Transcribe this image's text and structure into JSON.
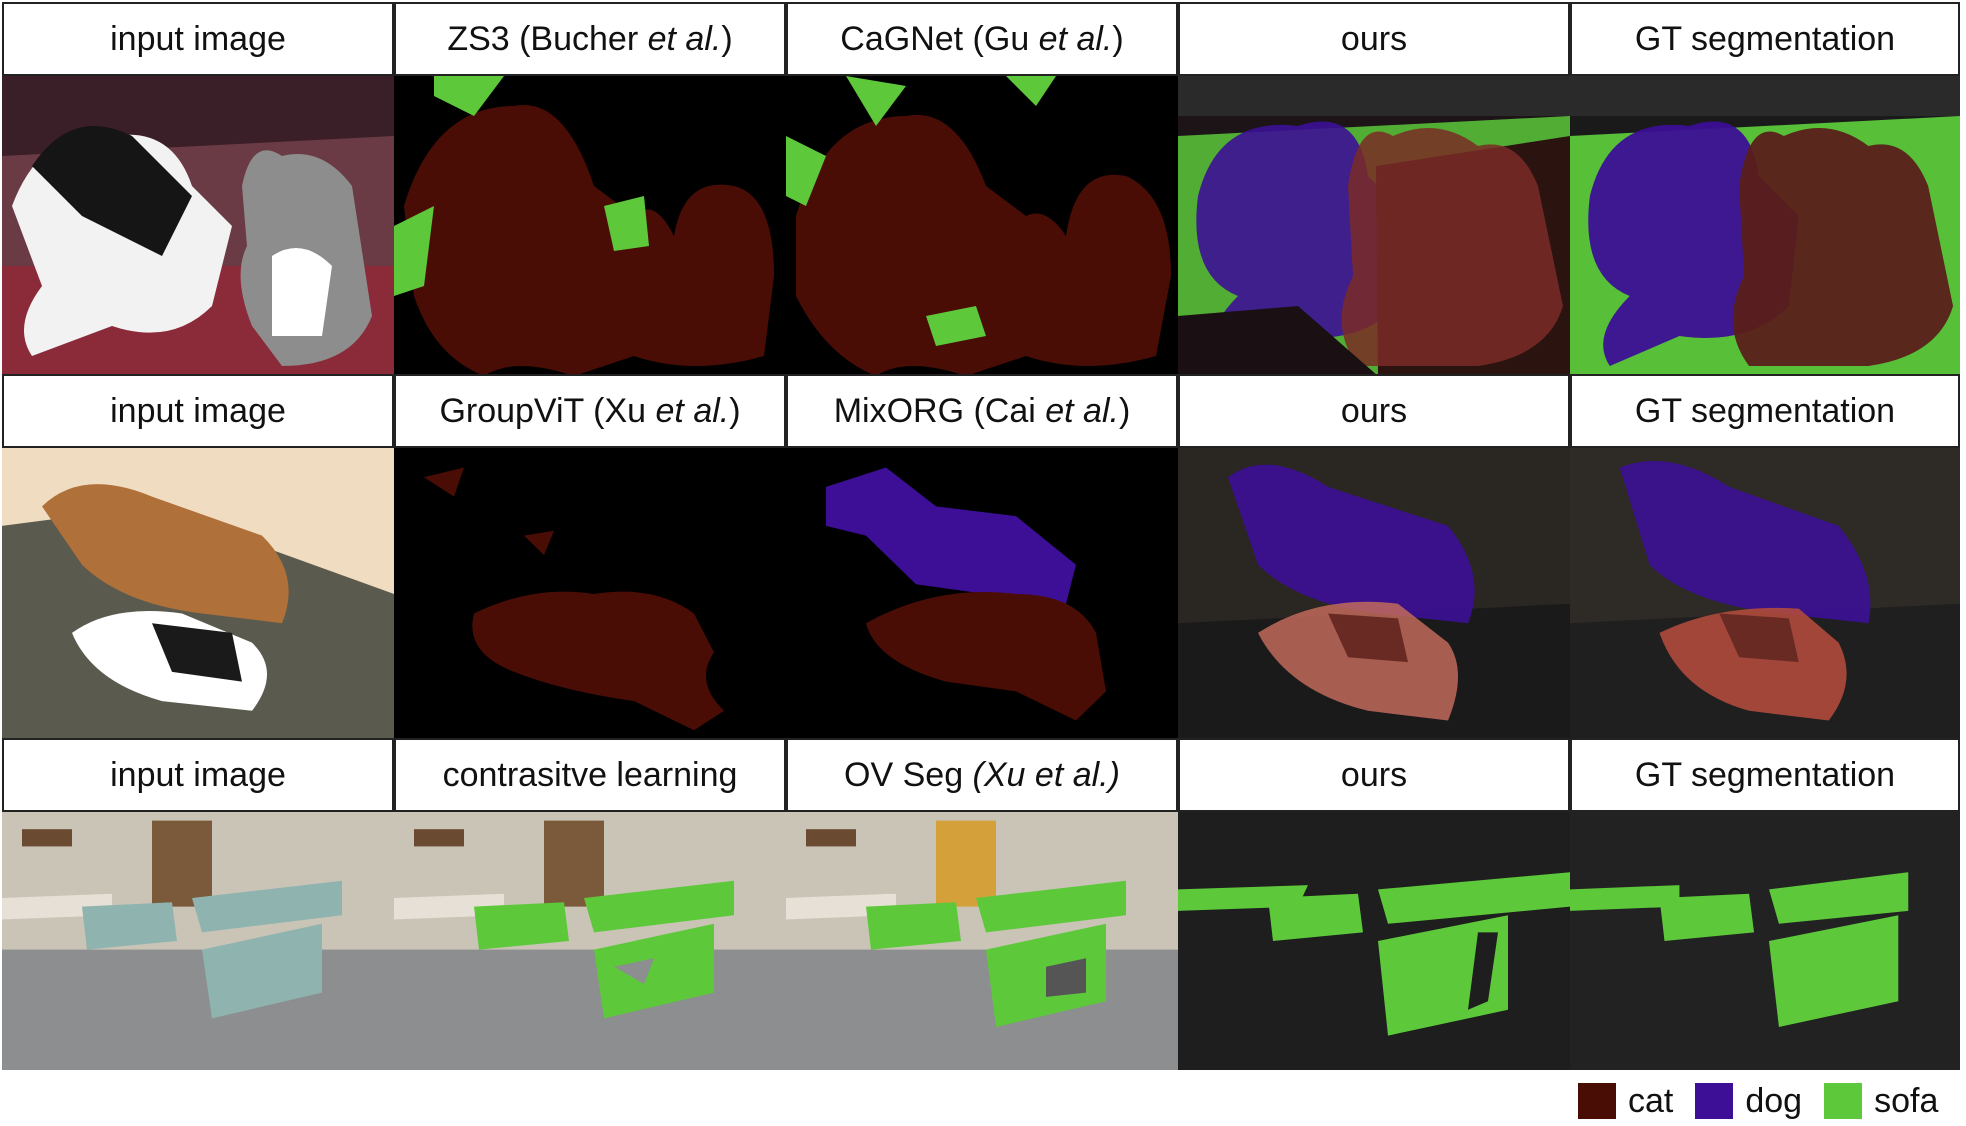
{
  "rows": [
    {
      "headers": [
        {
          "parts": [
            {
              "text": "input image",
              "italic": false
            }
          ]
        },
        {
          "parts": [
            {
              "text": "ZS3 (Bucher ",
              "italic": false
            },
            {
              "text": "et al.",
              "italic": true
            },
            {
              "text": ")",
              "italic": false
            }
          ]
        },
        {
          "parts": [
            {
              "text": "CaGNet (Gu ",
              "italic": false
            },
            {
              "text": "et al.",
              "italic": true
            },
            {
              "text": ")",
              "italic": false
            }
          ]
        },
        {
          "parts": [
            {
              "text": "ours",
              "italic": false
            }
          ]
        },
        {
          "parts": [
            {
              "text": "GT segmentation",
              "italic": false
            }
          ]
        }
      ]
    },
    {
      "headers": [
        {
          "parts": [
            {
              "text": "input image",
              "italic": false
            }
          ]
        },
        {
          "parts": [
            {
              "text": "GroupViT (Xu ",
              "italic": false
            },
            {
              "text": "et al.",
              "italic": true
            },
            {
              "text": ")",
              "italic": false
            }
          ]
        },
        {
          "parts": [
            {
              "text": "MixORG (Cai ",
              "italic": false
            },
            {
              "text": "et al.",
              "italic": true
            },
            {
              "text": ")",
              "italic": false
            }
          ]
        },
        {
          "parts": [
            {
              "text": "ours",
              "italic": false
            }
          ]
        },
        {
          "parts": [
            {
              "text": "GT segmentation",
              "italic": false
            }
          ]
        }
      ]
    },
    {
      "headers": [
        {
          "parts": [
            {
              "text": "input image",
              "italic": false
            }
          ]
        },
        {
          "parts": [
            {
              "text": "contrasitve learning",
              "italic": false
            }
          ]
        },
        {
          "parts": [
            {
              "text": "OV Seg ",
              "italic": false
            },
            {
              "text": "(Xu ",
              "italic": true
            },
            {
              "text": "et al.)",
              "italic": true
            }
          ]
        },
        {
          "parts": [
            {
              "text": "ours",
              "italic": false
            }
          ]
        },
        {
          "parts": [
            {
              "text": "GT segmentation",
              "italic": false
            }
          ]
        }
      ]
    }
  ],
  "legend": [
    {
      "label": "cat",
      "color": "#4a0d06"
    },
    {
      "label": "dog",
      "color": "#3c0f96"
    },
    {
      "label": "sofa",
      "color": "#5cc83a"
    }
  ],
  "colors": {
    "cat": "#4a0d06",
    "dog": "#3c0f96",
    "sofa": "#5cc83a",
    "background": "#000000"
  }
}
